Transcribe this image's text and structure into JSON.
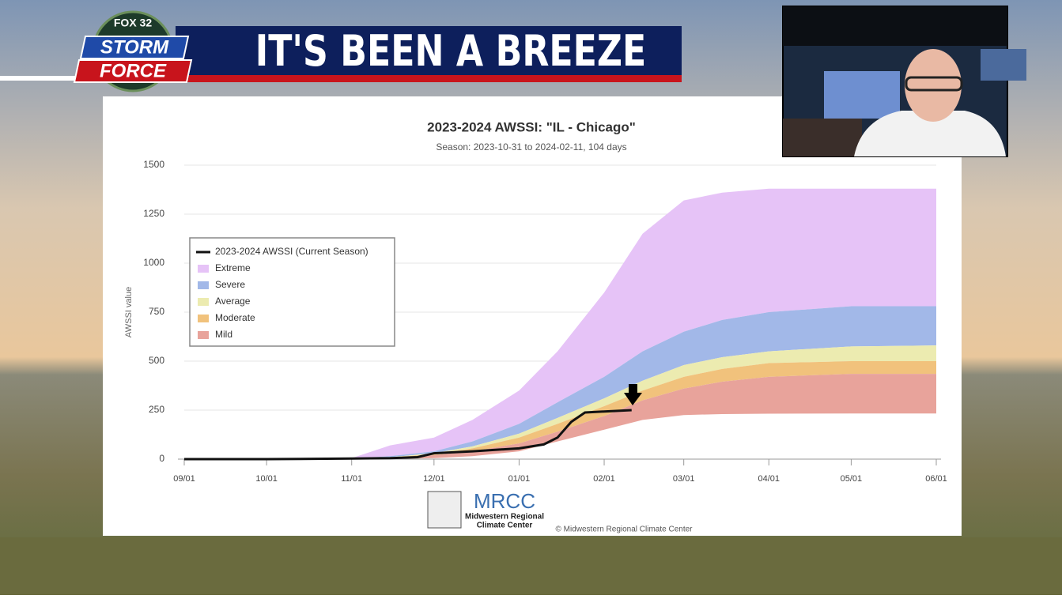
{
  "header": {
    "title": "IT'S BEEN A BREEZE"
  },
  "logo": {
    "network": "FOX 32",
    "line1": "STORM",
    "line2": "FORCE"
  },
  "chart_data": {
    "type": "area",
    "title": "2023-2024 AWSSI: \"IL - Chicago\"",
    "subtitle": "Season: 2023-10-31 to 2024-02-11, 104 days",
    "y_label": "AWSSI value",
    "ylim": [
      0,
      1500
    ],
    "yticks": [
      0,
      250,
      500,
      750,
      1000,
      1250,
      1500
    ],
    "xlim": [
      "09/01",
      "06/01"
    ],
    "xticks": [
      "09/01",
      "10/01",
      "11/01",
      "12/01",
      "01/01",
      "02/01",
      "03/01",
      "04/01",
      "05/01",
      "06/01"
    ],
    "grid": true,
    "legend": "upper left",
    "x": [
      "09/01",
      "10/01",
      "10/15",
      "11/01",
      "11/15",
      "12/01",
      "12/15",
      "01/01",
      "01/15",
      "02/01",
      "02/15",
      "03/01",
      "03/15",
      "04/01",
      "05/01",
      "06/01"
    ],
    "series": [
      {
        "name": "2023-2024 AWSSI (Current Season)",
        "color": "#111111",
        "x": [
          "09/01",
          "10/01",
          "11/01",
          "11/15",
          "11/25",
          "12/01",
          "12/15",
          "01/01",
          "01/10",
          "01/15",
          "01/20",
          "01/25",
          "02/01",
          "02/11"
        ],
        "values": [
          0,
          0,
          3,
          5,
          10,
          30,
          40,
          55,
          75,
          110,
          190,
          238,
          243,
          250
        ]
      },
      {
        "name": "Extreme",
        "color": "#e6c3f7",
        "low": [
          0,
          0,
          1,
          3,
          15,
          40,
          90,
          180,
          290,
          420,
          550,
          650,
          710,
          750,
          780,
          780
        ],
        "high": [
          0,
          0,
          2,
          5,
          70,
          110,
          200,
          350,
          550,
          850,
          1150,
          1320,
          1360,
          1380,
          1380,
          1380
        ]
      },
      {
        "name": "Severe",
        "color": "#a2b8e8",
        "low": [
          0,
          0,
          1,
          2,
          10,
          30,
          65,
          130,
          210,
          310,
          400,
          480,
          520,
          550,
          575,
          580
        ],
        "high": [
          0,
          0,
          1,
          3,
          15,
          40,
          90,
          180,
          290,
          420,
          550,
          650,
          710,
          750,
          780,
          780
        ]
      },
      {
        "name": "Average",
        "color": "#ecebb0",
        "low": [
          0,
          0,
          0,
          1,
          8,
          25,
          55,
          110,
          180,
          270,
          350,
          420,
          460,
          490,
          500,
          500
        ],
        "high": [
          0,
          0,
          1,
          2,
          10,
          30,
          65,
          130,
          210,
          310,
          400,
          480,
          520,
          550,
          575,
          580
        ]
      },
      {
        "name": "Moderate",
        "color": "#f1c27c",
        "low": [
          0,
          0,
          0,
          1,
          5,
          20,
          40,
          80,
          140,
          220,
          300,
          360,
          395,
          420,
          435,
          435
        ],
        "high": [
          0,
          0,
          0,
          1,
          8,
          25,
          55,
          110,
          180,
          270,
          350,
          420,
          460,
          490,
          500,
          500
        ]
      },
      {
        "name": "Mild",
        "color": "#e8a39b",
        "low": [
          0,
          0,
          0,
          0,
          0,
          5,
          15,
          40,
          90,
          150,
          200,
          225,
          230,
          232,
          233,
          233
        ],
        "high": [
          0,
          0,
          0,
          1,
          5,
          20,
          40,
          80,
          140,
          220,
          300,
          360,
          395,
          420,
          435,
          435
        ]
      }
    ]
  },
  "footer": {
    "logo": "MRCC",
    "org_line1": "Midwestern Regional",
    "org_line2": "Climate Center",
    "copyright": "© Midwestern Regional Climate Center"
  }
}
